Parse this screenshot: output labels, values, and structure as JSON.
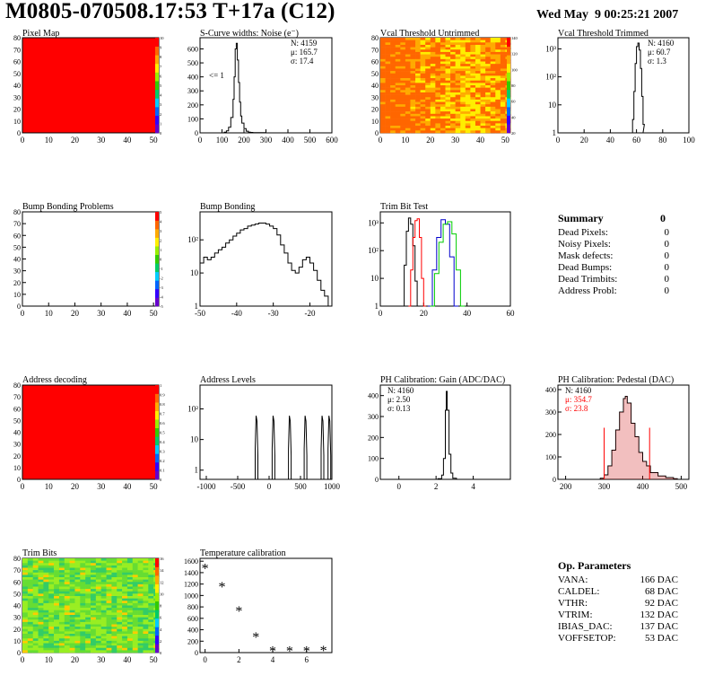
{
  "header": {
    "title": "M0805-070508.17:53 T+17a (C12)",
    "date": "Wed May  9 00:25:21 2007"
  },
  "colors": {
    "red": "#ff0000",
    "green": "#00cc00",
    "blue": "#0000cc",
    "black": "#000000",
    "pedestal_fill": "#cc0000"
  },
  "palette_ticks": {
    "pixel_map": [
      "0",
      "1",
      "2",
      "3",
      "4",
      "5",
      "6",
      "7",
      "8",
      "9",
      "10"
    ],
    "vcal": [
      "20",
      "40",
      "60",
      "80",
      "100",
      "120",
      "140"
    ],
    "bump_problems": [
      "-5",
      "-4",
      "-3",
      "-2",
      "-1",
      "0",
      "1",
      "2",
      "3",
      "4",
      "5"
    ],
    "address_decoding": [
      "0",
      "0.1",
      "0.2",
      "0.3",
      "0.4",
      "0.5",
      "0.6",
      "0.7",
      "0.8",
      "0.9",
      "1"
    ],
    "trim_bits": [
      "0",
      "2",
      "4",
      "6",
      "8",
      "10",
      "12",
      "14",
      "16"
    ]
  },
  "summary": {
    "title": "Summary",
    "total": "0",
    "rows": [
      {
        "label": "Dead Pixels:",
        "value": "0"
      },
      {
        "label": "Noisy Pixels:",
        "value": "0"
      },
      {
        "label": "Mask defects:",
        "value": "0"
      },
      {
        "label": "Dead Bumps:",
        "value": "0"
      },
      {
        "label": "Dead Trimbits:",
        "value": "0"
      },
      {
        "label": "Address Probl:",
        "value": "0"
      }
    ]
  },
  "op_params": {
    "title": "Op. Parameters",
    "rows": [
      {
        "label": "VANA:",
        "value": "166 DAC"
      },
      {
        "label": "CALDEL:",
        "value": "68 DAC"
      },
      {
        "label": "VTHR:",
        "value": "92 DAC"
      },
      {
        "label": "VTRIM:",
        "value": "132 DAC"
      },
      {
        "label": "IBIAS_DAC:",
        "value": "137 DAC"
      },
      {
        "label": "VOFFSETOP:",
        "value": "53 DAC"
      }
    ]
  },
  "chart_data": [
    {
      "id": "pixel_map",
      "type": "heatmap",
      "title": "Pixel Map",
      "xlim": [
        0,
        52
      ],
      "ylim": [
        0,
        80
      ],
      "xticks": [
        0,
        10,
        20,
        30,
        40,
        50
      ],
      "yticks": [
        0,
        10,
        20,
        30,
        40,
        50,
        60,
        70,
        80
      ],
      "uniform_value": 10,
      "zlim": [
        0,
        10
      ]
    },
    {
      "id": "scurve",
      "type": "line",
      "title": "S-Curve widths: Noise (e⁻)",
      "xlim": [
        0,
        600
      ],
      "ylim": [
        0,
        680
      ],
      "xticks": [
        0,
        100,
        200,
        300,
        400,
        500,
        600
      ],
      "yticks": [
        0,
        100,
        200,
        300,
        400,
        500,
        600
      ],
      "annotation": "<= 1",
      "stats": [
        {
          "text": "N: 4159"
        },
        {
          "text": "μ: 165.7"
        },
        {
          "text": "σ: 17.4"
        }
      ],
      "series": [
        {
          "x": [
            100,
            110,
            120,
            130,
            140,
            150,
            155,
            160,
            165,
            170,
            175,
            180,
            185,
            190,
            200,
            210,
            220,
            230,
            240,
            260,
            280,
            300
          ],
          "y": [
            0,
            5,
            15,
            40,
            110,
            240,
            400,
            600,
            640,
            520,
            360,
            220,
            120,
            70,
            30,
            12,
            5,
            3,
            2,
            1,
            1,
            0
          ]
        }
      ]
    },
    {
      "id": "vcal_untrimmed",
      "type": "heatmap",
      "title": "Vcal Threshold Untrimmed",
      "xlim": [
        0,
        52
      ],
      "ylim": [
        0,
        80
      ],
      "xticks": [
        0,
        10,
        20,
        30,
        40,
        50
      ],
      "yticks": [
        0,
        10,
        20,
        30,
        40,
        50,
        60,
        70,
        80
      ],
      "zlim": [
        0,
        145
      ]
    },
    {
      "id": "vcal_trimmed",
      "type": "line",
      "title": "Vcal Threshold Trimmed",
      "xlim": [
        0,
        100
      ],
      "log_y": true,
      "ylim": [
        1,
        2500
      ],
      "xticks": [
        0,
        20,
        40,
        60,
        80,
        100
      ],
      "yticks": [
        1,
        10,
        100,
        1000
      ],
      "stats": [
        {
          "text": "N: 4160"
        },
        {
          "text": "μ: 60.7"
        },
        {
          "text": "σ:  1.3"
        }
      ],
      "series": [
        {
          "x": [
            57,
            58,
            59,
            60,
            61,
            62,
            63,
            64,
            65
          ],
          "y": [
            3,
            30,
            300,
            1200,
            1600,
            900,
            200,
            20,
            2
          ]
        }
      ]
    },
    {
      "id": "bump_problems",
      "type": "heatmap",
      "title": "Bump Bonding Problems",
      "xlim": [
        0,
        52
      ],
      "ylim": [
        0,
        80
      ],
      "xticks": [
        0,
        10,
        20,
        30,
        40,
        50
      ],
      "yticks": [
        0,
        10,
        20,
        30,
        40,
        50,
        60,
        70,
        80
      ],
      "zlim": [
        -5,
        5
      ]
    },
    {
      "id": "bump_bonding",
      "type": "line",
      "title": "Bump Bonding",
      "xlim": [
        -50,
        -14
      ],
      "log_y": true,
      "ylim": [
        1,
        700
      ],
      "xticks": [
        -50,
        -40,
        -30,
        -20
      ],
      "yticks": [
        1,
        10,
        100
      ],
      "series": [
        {
          "x": [
            -50,
            -49,
            -48,
            -47,
            -46,
            -45,
            -44,
            -43,
            -42,
            -41,
            -40,
            -39,
            -38,
            -37,
            -36,
            -35,
            -34,
            -33,
            -32,
            -31,
            -30,
            -29,
            -28,
            -27,
            -26,
            -25,
            -24,
            -23,
            -22,
            -21,
            -20,
            -19,
            -18,
            -17,
            -16,
            -15
          ],
          "y": [
            20,
            30,
            25,
            30,
            40,
            50,
            60,
            80,
            100,
            130,
            160,
            200,
            220,
            260,
            280,
            300,
            320,
            320,
            300,
            260,
            220,
            140,
            70,
            40,
            20,
            12,
            10,
            15,
            25,
            30,
            20,
            12,
            6,
            3,
            2,
            1
          ]
        }
      ]
    },
    {
      "id": "trim_bit_test",
      "type": "line",
      "title": "Trim Bit Test",
      "xlim": [
        0,
        60
      ],
      "log_y": true,
      "ylim": [
        1,
        2500
      ],
      "xticks": [
        0,
        20,
        40,
        60
      ],
      "yticks": [
        1,
        10,
        100,
        1000
      ],
      "series": [
        {
          "name": "",
          "color": "#000000",
          "x": [
            10,
            11,
            12,
            13,
            14,
            15,
            16,
            17
          ],
          "y": [
            1,
            30,
            500,
            1500,
            900,
            150,
            8,
            1
          ]
        },
        {
          "name": "",
          "color": "#ff0000",
          "x": [
            13,
            14,
            15,
            16,
            17,
            18,
            19,
            20
          ],
          "y": [
            1,
            20,
            300,
            1200,
            1400,
            300,
            10,
            1
          ]
        },
        {
          "name": "",
          "color": "#0000cc",
          "x": [
            22,
            24,
            26,
            28,
            30,
            32,
            34
          ],
          "y": [
            1,
            20,
            300,
            1300,
            900,
            60,
            1
          ]
        },
        {
          "name": "",
          "color": "#00cc00",
          "x": [
            23,
            25,
            27,
            29,
            31,
            33,
            35,
            37
          ],
          "y": [
            1,
            15,
            200,
            900,
            1100,
            400,
            20,
            1
          ]
        }
      ]
    },
    {
      "id": "address_decoding",
      "type": "heatmap",
      "title": "Address decoding",
      "xlim": [
        0,
        52
      ],
      "ylim": [
        0,
        80
      ],
      "xticks": [
        0,
        10,
        20,
        30,
        40,
        50
      ],
      "yticks": [
        0,
        10,
        20,
        30,
        40,
        50,
        60,
        70,
        80
      ],
      "uniform_value": 1,
      "zlim": [
        0,
        1
      ]
    },
    {
      "id": "address_levels",
      "type": "line",
      "title": "Address Levels",
      "xlim": [
        -1100,
        1000
      ],
      "log_y": true,
      "ylim": [
        0.5,
        600
      ],
      "xticks": [
        -1000,
        -500,
        0,
        500,
        1000
      ],
      "yticks": [
        1,
        10,
        100
      ],
      "peaks": [
        -200,
        70,
        330,
        580,
        850,
        960
      ]
    },
    {
      "id": "ph_gain",
      "type": "line",
      "title": "PH Calibration: Gain (ADC/DAC)",
      "xlim": [
        -1,
        6
      ],
      "ylim": [
        0,
        450
      ],
      "xticks": [
        0,
        2,
        4
      ],
      "yticks": [
        0,
        100,
        200,
        300,
        400
      ],
      "stats": [
        {
          "text": "N: 4160"
        },
        {
          "text": "μ: 2.50"
        },
        {
          "text": "σ: 0.13"
        }
      ],
      "series": [
        {
          "x": [
            1.9,
            2.1,
            2.3,
            2.4,
            2.5,
            2.55,
            2.6,
            2.7,
            2.8,
            2.9,
            3.1
          ],
          "y": [
            0,
            3,
            20,
            100,
            330,
            420,
            330,
            120,
            30,
            5,
            0
          ]
        }
      ]
    },
    {
      "id": "ph_pedestal",
      "type": "line",
      "title": "PH Calibration: Pedestal (DAC)",
      "xlim": [
        180,
        520
      ],
      "ylim": [
        0,
        420
      ],
      "xticks": [
        200,
        300,
        400,
        500
      ],
      "yticks": [
        0,
        100,
        200,
        300,
        400
      ],
      "stats": [
        {
          "text": "N: 4160"
        },
        {
          "text": "μ: 354.7",
          "color": "#ff0000"
        },
        {
          "text": "σ: 23.8",
          "color": "#ff0000"
        }
      ],
      "fit_lines": [
        300,
        418
      ],
      "series": [
        {
          "x": [
            270,
            290,
            300,
            310,
            320,
            330,
            340,
            350,
            355,
            360,
            370,
            380,
            390,
            400,
            410,
            420,
            440,
            460,
            480,
            490
          ],
          "y": [
            0,
            5,
            20,
            60,
            130,
            220,
            300,
            360,
            370,
            340,
            250,
            190,
            120,
            80,
            60,
            30,
            15,
            8,
            3,
            0
          ]
        }
      ]
    },
    {
      "id": "trim_bits",
      "type": "heatmap",
      "title": "Trim Bits",
      "xlim": [
        0,
        52
      ],
      "ylim": [
        0,
        80
      ],
      "xticks": [
        0,
        10,
        20,
        30,
        40,
        50
      ],
      "yticks": [
        0,
        10,
        20,
        30,
        40,
        50,
        60,
        70,
        80
      ],
      "zlim": [
        0,
        16
      ]
    },
    {
      "id": "temperature",
      "type": "scatter",
      "title": "Temperature calibration",
      "xlim": [
        -0.3,
        7.5
      ],
      "ylim": [
        0,
        1650
      ],
      "xticks": [
        0,
        2,
        4,
        6
      ],
      "yticks": [
        0,
        200,
        400,
        600,
        800,
        1000,
        1200,
        1400,
        1600
      ],
      "x": [
        0,
        1,
        2,
        3,
        4,
        5,
        6,
        7
      ],
      "y": [
        1470,
        1150,
        720,
        270,
        25,
        20,
        22,
        30
      ]
    }
  ]
}
